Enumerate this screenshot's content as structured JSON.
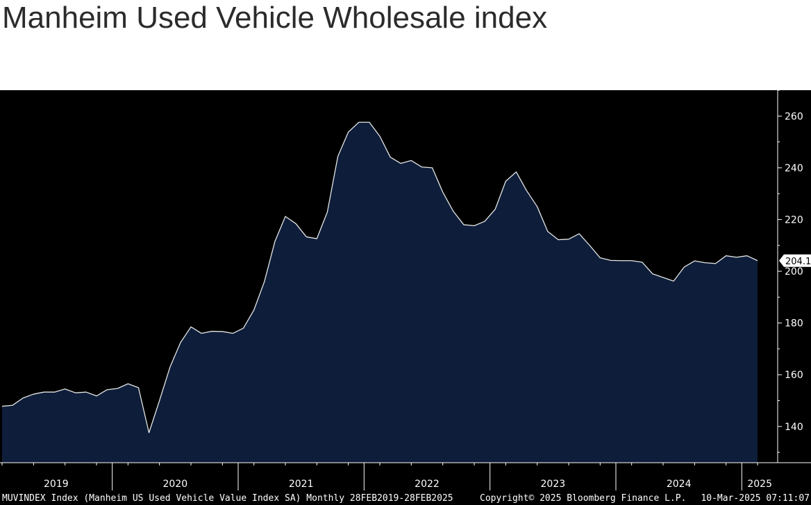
{
  "title": "Manheim Used Vehicle Wholesale index",
  "footer": {
    "left": "MUVINDEX Index (Manheim US Used Vehicle Value Index SA)  Monthly 28FEB2019-28FEB2025",
    "copyright": "Copyright© 2025 Bloomberg Finance L.P.",
    "timestamp": "10-Mar-2025 07:11:07"
  },
  "colors": {
    "background": "#000000",
    "area_fill": "#0e1e3a",
    "line": "#e6e6e6",
    "axis": "#ffffff",
    "page": "#ffffff"
  },
  "chart_data": {
    "type": "area",
    "x": [
      "2019-02",
      "2019-03",
      "2019-04",
      "2019-05",
      "2019-06",
      "2019-07",
      "2019-08",
      "2019-09",
      "2019-10",
      "2019-11",
      "2019-12",
      "2020-01",
      "2020-02",
      "2020-03",
      "2020-04",
      "2020-05",
      "2020-06",
      "2020-07",
      "2020-08",
      "2020-09",
      "2020-10",
      "2020-11",
      "2020-12",
      "2021-01",
      "2021-02",
      "2021-03",
      "2021-04",
      "2021-05",
      "2021-06",
      "2021-07",
      "2021-08",
      "2021-09",
      "2021-10",
      "2021-11",
      "2021-12",
      "2022-01",
      "2022-02",
      "2022-03",
      "2022-04",
      "2022-05",
      "2022-06",
      "2022-07",
      "2022-08",
      "2022-09",
      "2022-10",
      "2022-11",
      "2022-12",
      "2023-01",
      "2023-02",
      "2023-03",
      "2023-04",
      "2023-05",
      "2023-06",
      "2023-07",
      "2023-08",
      "2023-09",
      "2023-10",
      "2023-11",
      "2023-12",
      "2024-01",
      "2024-02",
      "2024-03",
      "2024-04",
      "2024-05",
      "2024-06",
      "2024-07",
      "2024-08",
      "2024-09",
      "2024-10",
      "2024-11",
      "2024-12",
      "2025-01",
      "2025-02"
    ],
    "series": [
      {
        "values": [
          147.8,
          148.2,
          151.0,
          152.5,
          153.3,
          153.3,
          154.5,
          153.0,
          153.3,
          151.8,
          154.2,
          154.7,
          156.5,
          155.0,
          137.6,
          150.0,
          162.9,
          172.4,
          178.5,
          176.0,
          176.8,
          176.7,
          176.0,
          178.0,
          185.0,
          196.0,
          211.5,
          221.2,
          218.4,
          213.3,
          212.6,
          222.9,
          244.4,
          253.8,
          257.6,
          257.6,
          252.2,
          244.1,
          241.7,
          242.8,
          240.3,
          240.0,
          230.6,
          223.2,
          218.0,
          217.6,
          219.3,
          224.0,
          234.8,
          238.4,
          231.1,
          225.0,
          215.4,
          212.2,
          212.4,
          214.5,
          210.0,
          205.2,
          204.2,
          204.1,
          204.1,
          203.5,
          199.0,
          197.6,
          196.2,
          201.6,
          204.0,
          203.3,
          203.0,
          206.0,
          205.4,
          206.0,
          204.1
        ]
      }
    ],
    "last_value_label": "204.1",
    "year_labels": [
      "2019",
      "2020",
      "2021",
      "2022",
      "2023",
      "2024",
      "2025"
    ],
    "y_ticks": [
      140,
      160,
      180,
      200,
      220,
      240,
      260
    ],
    "ylim": [
      126,
      270
    ],
    "y_axis_side": "right",
    "grid": false,
    "legend": "none"
  }
}
